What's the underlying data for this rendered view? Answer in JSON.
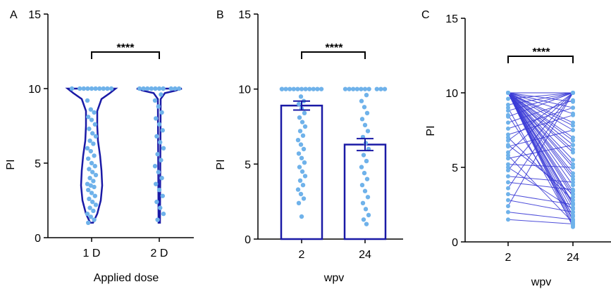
{
  "colors": {
    "dark": "#1a1aa6",
    "light": "#6fb2ea",
    "line": "#3b3bd6",
    "axis": "#000000"
  },
  "chart_data": [
    {
      "panel_label": "A",
      "type": "violin",
      "ylabel": "PI",
      "xlabel": "Applied dose",
      "ylim": [
        0,
        15
      ],
      "yticks": [
        "0",
        "5",
        "10",
        "15"
      ],
      "categories": [
        "1 D",
        "2 D"
      ],
      "significance": "****",
      "series": [
        {
          "category": "1 D",
          "min": 1,
          "max": 10,
          "median": 3.5,
          "points": [
            9.2,
            8.6,
            8.4,
            8.1,
            7.9,
            7.6,
            7.3,
            7.0,
            6.8,
            6.5,
            6.3,
            6.0,
            5.8,
            5.5,
            5.3,
            5.0,
            4.8,
            4.6,
            4.4,
            4.2,
            4.0,
            3.8,
            3.6,
            3.5,
            3.4,
            3.2,
            3.0,
            2.8,
            2.6,
            2.4,
            2.2,
            2.0,
            1.8,
            1.6,
            1.4,
            1.2,
            1.0,
            10,
            10,
            10,
            10,
            10,
            10,
            10,
            10,
            10,
            10
          ]
        },
        {
          "category": "2 D",
          "min": 1,
          "max": 10,
          "median": 10,
          "points": [
            10,
            10,
            10,
            10,
            10,
            10,
            10,
            10,
            10,
            10,
            9.6,
            9.2,
            8.8,
            8.4,
            8.0,
            7.6,
            7.2,
            6.8,
            6.4,
            6.0,
            5.6,
            5.2,
            4.8,
            4.4,
            4.0,
            3.6,
            3.2,
            2.8,
            2.4,
            2.0,
            1.6,
            1.2
          ]
        }
      ]
    },
    {
      "panel_label": "B",
      "type": "bar",
      "ylabel": "PI",
      "xlabel": "wpv",
      "ylim": [
        0,
        15
      ],
      "yticks": [
        "0",
        "5",
        "10",
        "15"
      ],
      "categories": [
        "2",
        "24"
      ],
      "significance": "****",
      "values": [
        8.9,
        6.3
      ],
      "error": [
        0.3,
        0.4
      ],
      "points": [
        [
          10,
          10,
          10,
          10,
          10,
          10,
          10,
          10,
          10,
          10,
          10,
          10,
          9.5,
          9.2,
          9.0,
          8.7,
          8.4,
          8.1,
          7.8,
          7.5,
          7.2,
          6.9,
          6.6,
          6.3,
          6.0,
          5.7,
          5.4,
          5.1,
          4.8,
          4.5,
          4.2,
          3.9,
          3.6,
          3.3,
          3.0,
          2.7,
          2.4,
          1.5
        ],
        [
          10,
          10,
          10,
          10,
          10,
          10,
          10,
          10,
          10,
          10,
          9.6,
          9.2,
          8.8,
          8.4,
          8.0,
          7.6,
          7.2,
          6.8,
          6.4,
          6.0,
          5.6,
          5.2,
          4.8,
          4.4,
          4.0,
          3.6,
          3.2,
          2.8,
          2.4,
          2.0,
          1.6,
          1.3,
          1.0
        ]
      ]
    },
    {
      "panel_label": "C",
      "type": "line",
      "ylabel": "PI",
      "xlabel": "wpv",
      "ylim": [
        0,
        15
      ],
      "yticks": [
        "0",
        "5",
        "10",
        "15"
      ],
      "categories": [
        "2",
        "24"
      ],
      "significance": "****",
      "pairs": [
        [
          10,
          1.0
        ],
        [
          10,
          1.2
        ],
        [
          10,
          1.4
        ],
        [
          10,
          1.7
        ],
        [
          10,
          2.0
        ],
        [
          10,
          2.3
        ],
        [
          10,
          2.6
        ],
        [
          10,
          3.0
        ],
        [
          10,
          3.4
        ],
        [
          10,
          3.8
        ],
        [
          10,
          4.2
        ],
        [
          10,
          4.6
        ],
        [
          10,
          5.0
        ],
        [
          10,
          5.5
        ],
        [
          10,
          6.0
        ],
        [
          10,
          6.5
        ],
        [
          10,
          7.0
        ],
        [
          10,
          7.5
        ],
        [
          10,
          8.0
        ],
        [
          10,
          9.0
        ],
        [
          10,
          10
        ],
        [
          10,
          10
        ],
        [
          10,
          10
        ],
        [
          9.6,
          10
        ],
        [
          9.2,
          10
        ],
        [
          8.8,
          10
        ],
        [
          8.4,
          10
        ],
        [
          8.0,
          9.5
        ],
        [
          7.6,
          9.0
        ],
        [
          7.2,
          8.5
        ],
        [
          6.8,
          10
        ],
        [
          6.4,
          7.5
        ],
        [
          6.0,
          10
        ],
        [
          5.6,
          6.5
        ],
        [
          5.2,
          5.0
        ],
        [
          4.8,
          10
        ],
        [
          4.4,
          4.0
        ],
        [
          4.0,
          3.5
        ],
        [
          3.6,
          10
        ],
        [
          3.2,
          2.5
        ],
        [
          2.8,
          2.0
        ],
        [
          2.4,
          10
        ],
        [
          2.0,
          1.5
        ],
        [
          1.5,
          1.2
        ],
        [
          9.0,
          1.1
        ],
        [
          8.5,
          1.8
        ],
        [
          7.0,
          2.8
        ],
        [
          6.5,
          3.2
        ],
        [
          5.8,
          1.3
        ],
        [
          5.0,
          2.2
        ],
        [
          10,
          1.5
        ],
        [
          10,
          2.5
        ],
        [
          10,
          3.2
        ],
        [
          10,
          4.4
        ],
        [
          10,
          5.2
        ],
        [
          10,
          6.2
        ],
        [
          10,
          6.8
        ],
        [
          10,
          7.8
        ],
        [
          10,
          8.6
        ],
        [
          10,
          9.4
        ]
      ]
    }
  ]
}
